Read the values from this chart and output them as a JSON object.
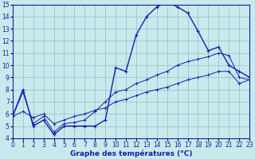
{
  "title": "Graphe des températures (°C)",
  "bg_color": "#c8eaec",
  "grid_color": "#8bbfc8",
  "line_color": "#1a1aaa",
  "xlim": [
    0,
    23
  ],
  "ylim": [
    4,
    15
  ],
  "xticks": [
    0,
    1,
    2,
    3,
    4,
    5,
    6,
    7,
    8,
    9,
    10,
    11,
    12,
    13,
    14,
    15,
    16,
    17,
    18,
    19,
    20,
    21,
    22,
    23
  ],
  "yticks": [
    4,
    5,
    6,
    7,
    8,
    9,
    10,
    11,
    12,
    13,
    14,
    15
  ],
  "s1_x": [
    0,
    1,
    2,
    3,
    4,
    5,
    6,
    7,
    8,
    9,
    10,
    11,
    12,
    13,
    14,
    15,
    16,
    17,
    18,
    19,
    20,
    21,
    22,
    23
  ],
  "s1_y": [
    5.8,
    8.0,
    5.0,
    5.5,
    4.3,
    5.0,
    5.0,
    5.0,
    5.0,
    5.5,
    9.8,
    9.5,
    12.5,
    14.0,
    14.8,
    15.2,
    14.8,
    14.3,
    12.8,
    11.2,
    11.5,
    10.0,
    9.5,
    9.0
  ],
  "s2_x": [
    0,
    1,
    2,
    3,
    4,
    5,
    6,
    7,
    8,
    9,
    10,
    11,
    12,
    13,
    14,
    15,
    16,
    17,
    18,
    19,
    20,
    21,
    22,
    23
  ],
  "s2_y": [
    5.8,
    7.8,
    5.2,
    5.8,
    4.5,
    5.2,
    5.3,
    5.5,
    6.2,
    7.0,
    7.8,
    8.0,
    8.5,
    8.8,
    9.2,
    9.5,
    10.0,
    10.3,
    10.5,
    10.7,
    11.0,
    10.8,
    9.0,
    8.8
  ],
  "s3_x": [
    0,
    1,
    2,
    3,
    4,
    5,
    6,
    7,
    8,
    9,
    10,
    11,
    12,
    13,
    14,
    15,
    16,
    17,
    18,
    19,
    20,
    21,
    22,
    23
  ],
  "s3_y": [
    5.8,
    6.2,
    5.7,
    6.0,
    5.2,
    5.5,
    5.8,
    6.0,
    6.3,
    6.5,
    7.0,
    7.2,
    7.5,
    7.8,
    8.0,
    8.2,
    8.5,
    8.8,
    9.0,
    9.2,
    9.5,
    9.5,
    8.5,
    8.8
  ],
  "tick_fontsize": 5.5,
  "xlabel_fontsize": 6.5
}
